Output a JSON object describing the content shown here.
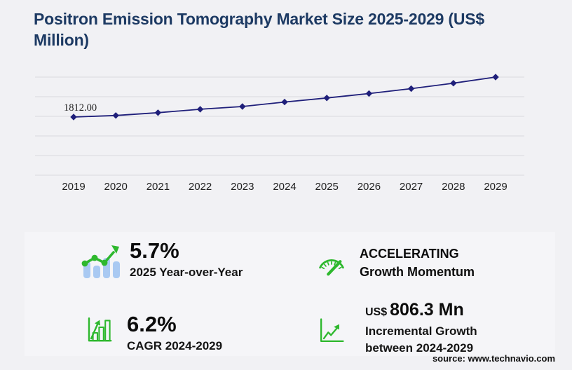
{
  "page": {
    "title": "Positron Emission Tomography Market Size 2025-2029 (US$ Million)",
    "source": "source: www.technavio.com"
  },
  "chart_data": {
    "type": "line",
    "title": "Positron Emission Tomography Market Size 2025-2029 (US$ Million)",
    "x": [
      "2019",
      "2020",
      "2021",
      "2022",
      "2023",
      "2024",
      "2025",
      "2026",
      "2027",
      "2028",
      "2029"
    ],
    "values": [
      1812.0,
      1862.4,
      1952.1,
      2063.0,
      2150.8,
      2296.8,
      2427.7,
      2570.9,
      2730.3,
      2905.1,
      3103.1
    ],
    "labeled_points": {
      "2019": "1812.00"
    },
    "ylabel": "US$ Million",
    "xlabel": "",
    "ylim": [
      1700,
      3200
    ],
    "grid": true,
    "gridline_count": 6,
    "legend": false,
    "marker": "diamond",
    "line_color": "#1f1f7a"
  },
  "stats": [
    {
      "icon": "bar-trend-up-icon",
      "value": "5.7%",
      "label": "2025 Year-over-Year"
    },
    {
      "icon": "growth-bars-arrow-icon",
      "value": "6.2%",
      "label": "CAGR 2024-2029"
    },
    {
      "icon": "speedometer-icon",
      "line1": "ACCELERATING",
      "line2": "Growth Momentum"
    },
    {
      "icon": "incremental-growth-icon",
      "currency": "US$",
      "value": "806.3 Mn",
      "label_line1": "Incremental Growth",
      "label_line2": "between 2024-2029"
    }
  ],
  "colors": {
    "title": "#1d3a63",
    "line": "#1f1f7a",
    "green": "#2eb82e",
    "light_blue": "#a9c9f2",
    "grid": "#d9d9de",
    "page_bg": "#f1f1f4",
    "panel_bg": "#f5f5f8",
    "tick_label": "#1f1f1f",
    "data_label": "#222222"
  }
}
